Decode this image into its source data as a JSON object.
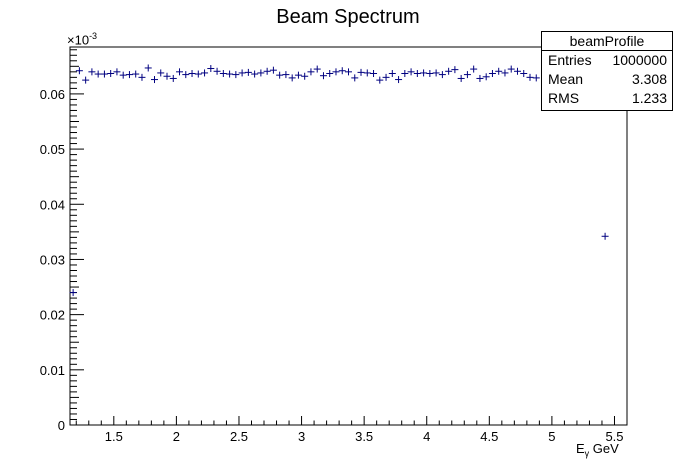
{
  "chart_data": {
    "type": "scatter",
    "title": "Beam Spectrum",
    "xlabel_main": "E",
    "xlabel_sub": "γ",
    "xlabel_unit": " GeV",
    "ylabel": "",
    "y_multiplier_base": "×10",
    "y_multiplier_exp": "-3",
    "xlim": [
      1.15,
      5.6
    ],
    "ylim": [
      0,
      0.0685
    ],
    "x_ticks": [
      1.5,
      2,
      2.5,
      3,
      3.5,
      4,
      4.5,
      5,
      5.5
    ],
    "x_tick_labels": [
      "1.5",
      "2",
      "2.5",
      "3",
      "3.5",
      "4",
      "4.5",
      "5",
      "5.5"
    ],
    "y_ticks": [
      0,
      0.01,
      0.02,
      0.03,
      0.04,
      0.05,
      0.06
    ],
    "y_tick_labels": [
      "0",
      "0.01",
      "0.02",
      "0.03",
      "0.04",
      "0.05",
      "0.06"
    ],
    "marker_color": "#000080",
    "series": [
      {
        "x": [
          1.175,
          1.225,
          1.275,
          1.325,
          1.375,
          1.425,
          1.475,
          1.525,
          1.575,
          1.625,
          1.675,
          1.725,
          1.775,
          1.825,
          1.875,
          1.925,
          1.975,
          2.025,
          2.075,
          2.125,
          2.175,
          2.225,
          2.275,
          2.325,
          2.375,
          2.425,
          2.475,
          2.525,
          2.575,
          2.625,
          2.675,
          2.725,
          2.775,
          2.825,
          2.875,
          2.925,
          2.975,
          3.025,
          3.075,
          3.125,
          3.175,
          3.225,
          3.275,
          3.325,
          3.375,
          3.425,
          3.475,
          3.525,
          3.575,
          3.625,
          3.675,
          3.725,
          3.775,
          3.825,
          3.875,
          3.925,
          3.975,
          4.025,
          4.075,
          4.125,
          4.175,
          4.225,
          4.275,
          4.325,
          4.375,
          4.425,
          4.475,
          4.525,
          4.575,
          4.625,
          4.675,
          4.725,
          4.775,
          4.825,
          4.875,
          5.425
        ],
        "y": [
          0.024,
          0.0642,
          0.0625,
          0.064,
          0.0636,
          0.0636,
          0.0637,
          0.064,
          0.0634,
          0.0635,
          0.0636,
          0.063,
          0.0647,
          0.0626,
          0.0638,
          0.0632,
          0.0628,
          0.064,
          0.0635,
          0.0637,
          0.0636,
          0.0638,
          0.0646,
          0.0641,
          0.0637,
          0.0636,
          0.0635,
          0.0638,
          0.0639,
          0.0636,
          0.0638,
          0.0641,
          0.0643,
          0.0634,
          0.0635,
          0.0629,
          0.0634,
          0.0632,
          0.064,
          0.0645,
          0.0633,
          0.0637,
          0.064,
          0.0642,
          0.064,
          0.0629,
          0.0639,
          0.0638,
          0.0637,
          0.0625,
          0.063,
          0.0637,
          0.0626,
          0.0637,
          0.064,
          0.0637,
          0.0638,
          0.0637,
          0.0638,
          0.0635,
          0.0641,
          0.0644,
          0.0628,
          0.0635,
          0.0645,
          0.0628,
          0.0631,
          0.0637,
          0.0641,
          0.0638,
          0.0645,
          0.0641,
          0.0637,
          0.063,
          0.0629,
          0.0342
        ]
      }
    ]
  },
  "stats_box": {
    "name": "beamProfile",
    "rows": [
      {
        "label": "Entries",
        "value": "1000000"
      },
      {
        "label": "Mean",
        "value": "3.308"
      },
      {
        "label": "RMS",
        "value": "1.233"
      }
    ]
  }
}
